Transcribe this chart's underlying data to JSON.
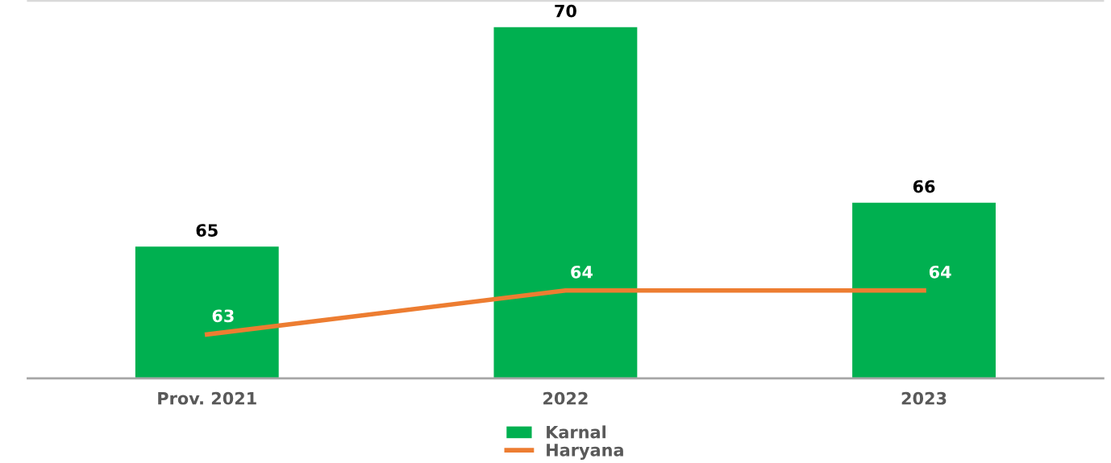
{
  "chart_data": {
    "type": "bar",
    "categories": [
      "Prov. 2021",
      "2022",
      "2023"
    ],
    "series": [
      {
        "name": "Karnal",
        "color": "#00b050",
        "values": [
          65,
          70,
          66
        ]
      },
      {
        "name": "Haryana",
        "type": "line",
        "color": "#ed7d31",
        "values": [
          63,
          64,
          64
        ]
      }
    ],
    "ylim": [
      62,
      70.6
    ],
    "tick_labels": "x",
    "data_labels": true,
    "legend": "bottom",
    "grid": false,
    "marker": "none"
  }
}
